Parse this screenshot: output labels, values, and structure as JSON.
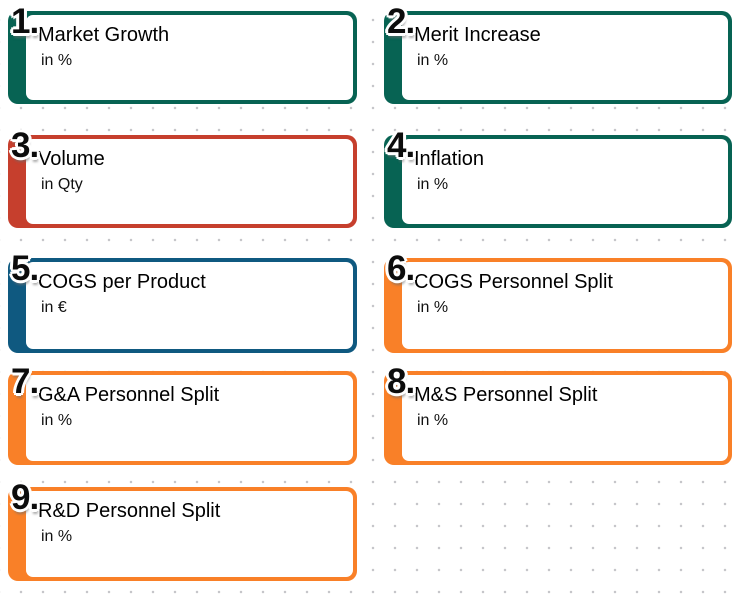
{
  "canvas": {
    "background_color": "#ffffff",
    "grid_dot_color": "#c6c6ca"
  },
  "accent_colors": {
    "green": "#076353",
    "red": "#C63F2D",
    "blue": "#0F5980",
    "orange": "#F98028"
  },
  "cards": [
    {
      "number": "1.",
      "title": "Market Growth",
      "subtitle": "in %",
      "color": "#076353"
    },
    {
      "number": "2.",
      "title": "Merit Increase",
      "subtitle": "in %",
      "color": "#076353"
    },
    {
      "number": "3.",
      "title": "Volume",
      "subtitle": "in Qty",
      "color": "#C63F2D"
    },
    {
      "number": "4.",
      "title": "Inflation",
      "subtitle": "in %",
      "color": "#076353"
    },
    {
      "number": "5.",
      "title": "COGS per Product",
      "subtitle": "in €",
      "color": "#0F5980"
    },
    {
      "number": "6.",
      "title": "COGS Personnel Split",
      "subtitle": "in %",
      "color": "#F98028"
    },
    {
      "number": "7.",
      "title": "G&A Personnel Split",
      "subtitle": "in %",
      "color": "#F98028"
    },
    {
      "number": "8.",
      "title": "M&S Personnel Split",
      "subtitle": "in %",
      "color": "#F98028"
    },
    {
      "number": "9.",
      "title": "R&D Personnel Split",
      "subtitle": "in %",
      "color": "#F98028"
    }
  ]
}
